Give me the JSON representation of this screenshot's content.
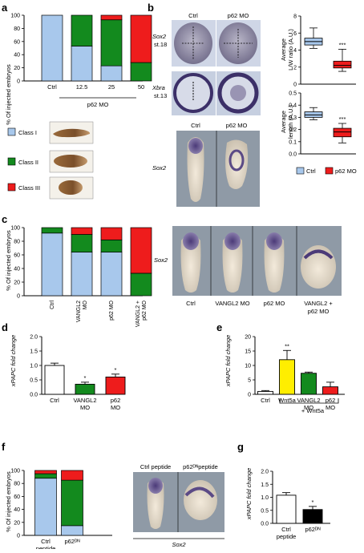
{
  "colors": {
    "class1": "#a8c8ec",
    "class2": "#138a1e",
    "class3": "#ee1c1c",
    "yellow": "#ffee00",
    "white": "#ffffff",
    "black": "#000000",
    "box_ctrl": "#a8c8ec",
    "box_mo": "#ee1c1c",
    "embryo_bg": "#8f9aa6"
  },
  "panels": {
    "a": {
      "letter": "a",
      "ylabel": "% Of injected embryos",
      "group_label": "p62 MO",
      "legend": [
        "Class I",
        "Class II",
        "Class III"
      ]
    },
    "b": {
      "letter": "b",
      "col_ctrl": "Ctrl",
      "col_mo": "p62 MO",
      "row1_gene": "Sox2",
      "row1_stage": "st.18",
      "row2_gene": "Xbra",
      "row2_stage": "st.13",
      "bottom_ctrl": "Ctrl",
      "bottom_mo": "p62 MO",
      "bottom_gene": "Sox2",
      "legend_ctrl": "Ctrl",
      "legend_mo": "p62 MO"
    },
    "c": {
      "letter": "c",
      "ylabel": "% Of injected embryos",
      "gene": "Sox2",
      "embryo_labels": [
        "Ctrl",
        "VANGL2 MO",
        "p62 MO",
        "VANGL2 +\np62 MO"
      ]
    },
    "d": {
      "letter": "d",
      "ylabel": "xPAPC fold change"
    },
    "e": {
      "letter": "e",
      "ylabel": "xPAPC fold change",
      "group_label": "+ Wnt5a"
    },
    "f": {
      "letter": "f",
      "ylabel": "% Of injected embryos",
      "embryo_ctrl": "Ctrl peptide",
      "embryo_dn": "p62ᴰᴺpeptide",
      "gene": "Sox2"
    },
    "g": {
      "letter": "g",
      "ylabel": "xPAPC fold change"
    }
  },
  "chart_data": [
    {
      "panel": "a",
      "type": "bar",
      "stacked": true,
      "categories": [
        "Ctrl",
        "12.5",
        "25",
        "50"
      ],
      "series": [
        {
          "name": "Class I",
          "values": [
            100,
            53,
            23,
            0
          ]
        },
        {
          "name": "Class II",
          "values": [
            0,
            47,
            70,
            28
          ]
        },
        {
          "name": "Class III",
          "values": [
            0,
            0,
            7,
            72
          ]
        }
      ],
      "ylabel": "% Of injected embryos",
      "yticks": [
        0,
        20,
        40,
        60,
        80,
        100
      ],
      "ylim": [
        0,
        100
      ]
    },
    {
      "panel": "b1",
      "type": "box",
      "categories": [
        "Ctrl",
        "p62 MO"
      ],
      "boxes": [
        {
          "min": 4.2,
          "q1": 4.6,
          "median": 5.0,
          "q3": 5.4,
          "max": 6.6
        },
        {
          "min": 1.5,
          "q1": 1.9,
          "median": 2.2,
          "q3": 2.7,
          "max": 4.1
        }
      ],
      "ylabel": "Average\nL/W ratio (A.U.)",
      "yticks": [
        0,
        2,
        4,
        6,
        8
      ],
      "ylim": [
        0,
        8
      ],
      "annotation": "***"
    },
    {
      "panel": "b2",
      "type": "box",
      "categories": [
        "Ctrl",
        "p62 MO"
      ],
      "boxes": [
        {
          "min": 0.28,
          "q1": 0.3,
          "median": 0.32,
          "q3": 0.345,
          "max": 0.38
        },
        {
          "min": 0.09,
          "q1": 0.14,
          "median": 0.18,
          "q3": 0.21,
          "max": 0.25
        }
      ],
      "ylabel": "Average\nlength (A.U.)",
      "yticks": [
        0.0,
        0.1,
        0.2,
        0.3,
        0.4,
        0.5
      ],
      "ylim": [
        0,
        0.5
      ],
      "annotation": "***"
    },
    {
      "panel": "c",
      "type": "bar",
      "stacked": true,
      "categories": [
        "Ctrl",
        "VANGL2\nMO",
        "p62 MO",
        "VANGL2 +\np62 MO"
      ],
      "series": [
        {
          "name": "Class I",
          "values": [
            92,
            64,
            64,
            0
          ]
        },
        {
          "name": "Class II",
          "values": [
            8,
            26,
            18,
            33
          ]
        },
        {
          "name": "Class III",
          "values": [
            0,
            10,
            18,
            67
          ]
        }
      ],
      "ylabel": "% Of injected embryos",
      "yticks": [
        0,
        20,
        40,
        60,
        80,
        100
      ],
      "ylim": [
        0,
        100
      ]
    },
    {
      "panel": "d",
      "type": "bar",
      "categories": [
        "Ctrl",
        "VANGL2\nMO",
        "p62\nMO"
      ],
      "values": [
        1.0,
        0.35,
        0.6
      ],
      "errors": [
        0.08,
        0.07,
        0.1
      ],
      "stars": [
        "",
        "*",
        "*"
      ],
      "fills": [
        "#ffffff",
        "#138a1e",
        "#ee1c1c"
      ],
      "ylabel": "xPAPC fold change",
      "yticks": [
        0.0,
        0.5,
        1.0,
        1.5,
        2.0
      ],
      "ylim": [
        0,
        2.0
      ]
    },
    {
      "panel": "e",
      "type": "bar",
      "categories": [
        "Ctrl",
        "Wnt5a",
        "VANGL2\nMO",
        "p62\nMO"
      ],
      "values": [
        1.0,
        12.0,
        7.3,
        2.6
      ],
      "errors": [
        0.3,
        3.2,
        0.4,
        1.6
      ],
      "stars": [
        "",
        "**",
        "",
        ""
      ],
      "fills": [
        "#ffffff",
        "#ffee00",
        "#138a1e",
        "#ee1c1c"
      ],
      "ylabel": "xPAPC fold change",
      "yticks": [
        0,
        5,
        10,
        15,
        20
      ],
      "ylim": [
        0,
        20
      ]
    },
    {
      "panel": "f",
      "type": "bar",
      "stacked": true,
      "categories": [
        "Ctrl\npeptide",
        "p62ᴰᴺ"
      ],
      "series": [
        {
          "name": "Class I",
          "values": [
            88,
            15
          ]
        },
        {
          "name": "Class II",
          "values": [
            7,
            70
          ]
        },
        {
          "name": "Class III",
          "values": [
            5,
            15
          ]
        }
      ],
      "ylabel": "% Of injected embryos",
      "yticks": [
        0,
        20,
        40,
        60,
        80,
        100
      ],
      "ylim": [
        0,
        100
      ]
    },
    {
      "panel": "g",
      "type": "bar",
      "categories": [
        "Ctrl\npeptide",
        "p62ᴰᴺ"
      ],
      "values": [
        1.08,
        0.53
      ],
      "errors": [
        0.1,
        0.12
      ],
      "stars": [
        "",
        "*"
      ],
      "fills": [
        "#ffffff",
        "#000000"
      ],
      "ylabel": "xPAPC fold change",
      "yticks": [
        0.0,
        0.5,
        1.0,
        1.5,
        2.0
      ],
      "ylim": [
        0,
        2.0
      ]
    }
  ]
}
